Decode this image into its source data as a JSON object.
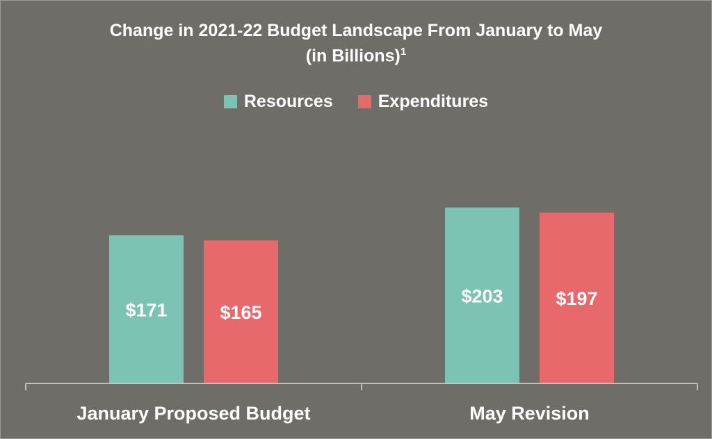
{
  "chart_data": {
    "type": "bar",
    "title": "Change in 2021-22 Budget Landscape From January to May",
    "subtitle": "(in Billions)",
    "subtitle_footnote": "1",
    "categories": [
      "January Proposed Budget",
      "May Revision"
    ],
    "series": [
      {
        "name": "Resources",
        "values": [
          171,
          203
        ],
        "labels": [
          "$171",
          "$203"
        ],
        "color": "#7cc3b4"
      },
      {
        "name": "Expenditures",
        "values": [
          165,
          197
        ],
        "labels": [
          "$165",
          "$197"
        ],
        "color": "#e8696b"
      }
    ],
    "ylim": [
      0,
      250
    ],
    "legend": "top-center",
    "grid": false
  }
}
